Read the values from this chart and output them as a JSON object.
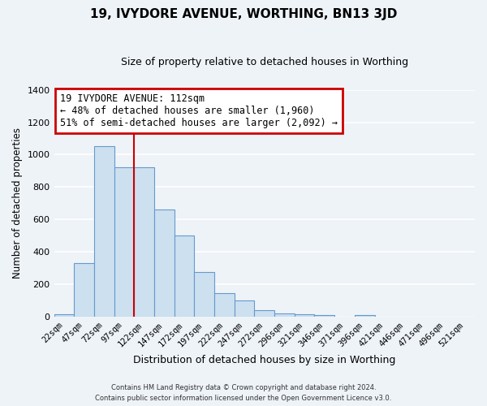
{
  "title": "19, IVYDORE AVENUE, WORTHING, BN13 3JD",
  "subtitle": "Size of property relative to detached houses in Worthing",
  "xlabel": "Distribution of detached houses by size in Worthing",
  "ylabel": "Number of detached properties",
  "bar_labels": [
    "22sqm",
    "47sqm",
    "72sqm",
    "97sqm",
    "122sqm",
    "147sqm",
    "172sqm",
    "197sqm",
    "222sqm",
    "247sqm",
    "272sqm",
    "296sqm",
    "321sqm",
    "346sqm",
    "371sqm",
    "396sqm",
    "421sqm",
    "446sqm",
    "471sqm",
    "496sqm",
    "521sqm"
  ],
  "bar_values": [
    18,
    330,
    1050,
    920,
    920,
    660,
    500,
    275,
    148,
    100,
    40,
    22,
    18,
    10,
    0,
    10,
    0,
    0,
    0,
    0,
    0
  ],
  "bar_color": "#cce0f0",
  "bar_edge_color": "#6699cc",
  "vline_x_index": 4,
  "vline_color": "#cc0000",
  "annotation_title": "19 IVYDORE AVENUE: 112sqm",
  "annotation_line1": "← 48% of detached houses are smaller (1,960)",
  "annotation_line2": "51% of semi-detached houses are larger (2,092) →",
  "annotation_box_facecolor": "#ffffff",
  "annotation_box_edgecolor": "#cc0000",
  "ylim": [
    0,
    1400
  ],
  "yticks": [
    0,
    200,
    400,
    600,
    800,
    1000,
    1200,
    1400
  ],
  "plot_bg_color": "#eef3f8",
  "fig_bg_color": "#eef3f8",
  "grid_color": "#ffffff",
  "footer_line1": "Contains HM Land Registry data © Crown copyright and database right 2024.",
  "footer_line2": "Contains public sector information licensed under the Open Government Licence v3.0."
}
